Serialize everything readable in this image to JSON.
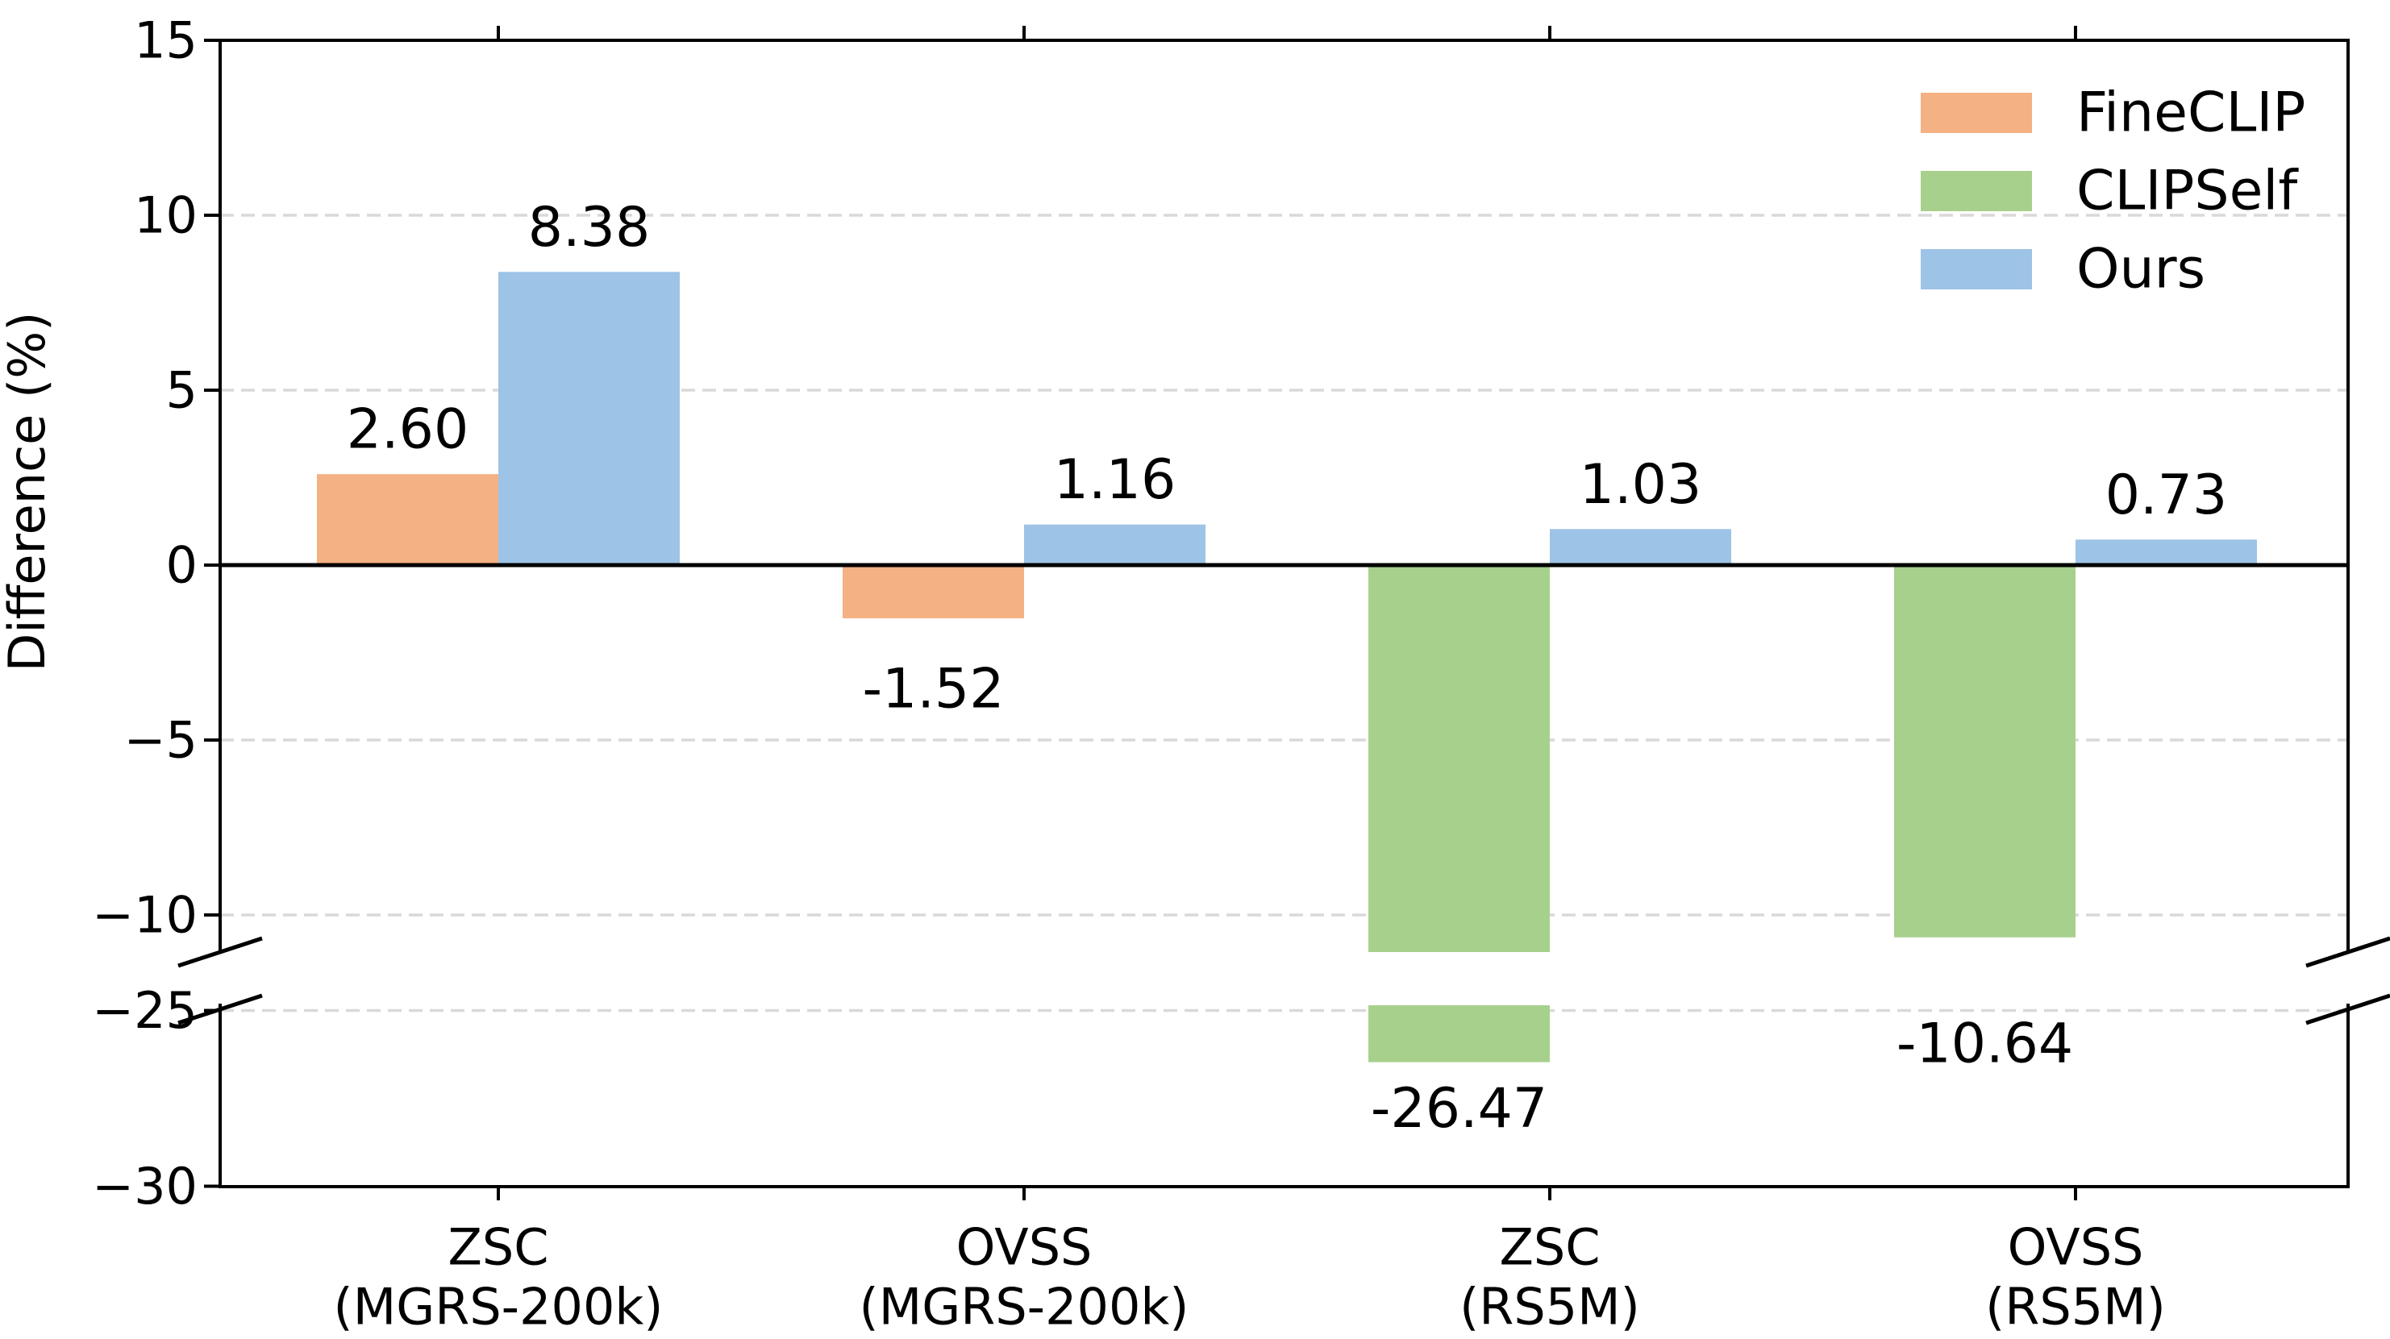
{
  "figure": {
    "background": "#ffffff"
  },
  "chart_data": {
    "type": "bar",
    "title": "",
    "xlabel": "",
    "ylabel": "Difference (%)",
    "categories": [
      {
        "line1": "ZSC",
        "line2": "(MGRS-200k)"
      },
      {
        "line1": "OVSS",
        "line2": "(MGRS-200k)"
      },
      {
        "line1": "ZSC",
        "line2": "(RS5M)"
      },
      {
        "line1": "OVSS",
        "line2": "(RS5M)"
      }
    ],
    "series": [
      {
        "name": "FineCLIP",
        "color": "#F4B183",
        "values": [
          2.6,
          -1.52,
          null,
          null
        ]
      },
      {
        "name": "CLIPSelf",
        "color": "#A8D08D",
        "values": [
          null,
          null,
          -26.47,
          -10.64
        ]
      },
      {
        "name": "Ours",
        "color": "#9DC3E6",
        "values": [
          8.38,
          1.16,
          1.03,
          0.73
        ]
      }
    ],
    "bars": [
      {
        "group": 0,
        "slot": "left",
        "series": "FineCLIP",
        "value": 2.6,
        "label": "2.60"
      },
      {
        "group": 0,
        "slot": "right",
        "series": "Ours",
        "value": 8.38,
        "label": "8.38"
      },
      {
        "group": 1,
        "slot": "left",
        "series": "FineCLIP",
        "value": -1.52,
        "label": "-1.52"
      },
      {
        "group": 1,
        "slot": "right",
        "series": "Ours",
        "value": 1.16,
        "label": "1.16"
      },
      {
        "group": 2,
        "slot": "left",
        "series": "CLIPSelf",
        "value": -26.47,
        "label": "-26.47"
      },
      {
        "group": 2,
        "slot": "right",
        "series": "Ours",
        "value": 1.03,
        "label": "1.03"
      },
      {
        "group": 3,
        "slot": "left",
        "series": "CLIPSelf",
        "value": -10.64,
        "label": "-10.64"
      },
      {
        "group": 3,
        "slot": "right",
        "series": "Ours",
        "value": 0.73,
        "label": "0.73"
      }
    ],
    "y_axis": {
      "broken": true,
      "top_segment": {
        "ylim": [
          -11.06,
          15
        ],
        "ticks": [
          {
            "value": 15,
            "label": "15"
          },
          {
            "value": 10,
            "label": "10"
          },
          {
            "value": 5,
            "label": "5"
          },
          {
            "value": 0,
            "label": "0"
          },
          {
            "value": -5,
            "label": "−5"
          },
          {
            "value": -10,
            "label": "−10"
          }
        ],
        "gridlines": [
          10,
          5,
          -5,
          -10
        ]
      },
      "bottom_segment": {
        "ylim": [
          -30,
          -24.85
        ],
        "ticks": [
          {
            "value": -25,
            "label": "−25"
          },
          {
            "value": -30,
            "label": "−30"
          }
        ],
        "gridlines": [
          -25
        ]
      },
      "zero_line": true
    },
    "legend": {
      "position": "upper-right",
      "entries": [
        {
          "label": "FineCLIP",
          "color": "#F4B183"
        },
        {
          "label": "CLIPSelf",
          "color": "#A8D08D"
        },
        {
          "label": "Ours",
          "color": "#9DC3E6"
        }
      ]
    },
    "grid": {
      "on": true,
      "style": "dashed",
      "color": "#d9d9d9"
    },
    "axis_color": "#000000"
  }
}
